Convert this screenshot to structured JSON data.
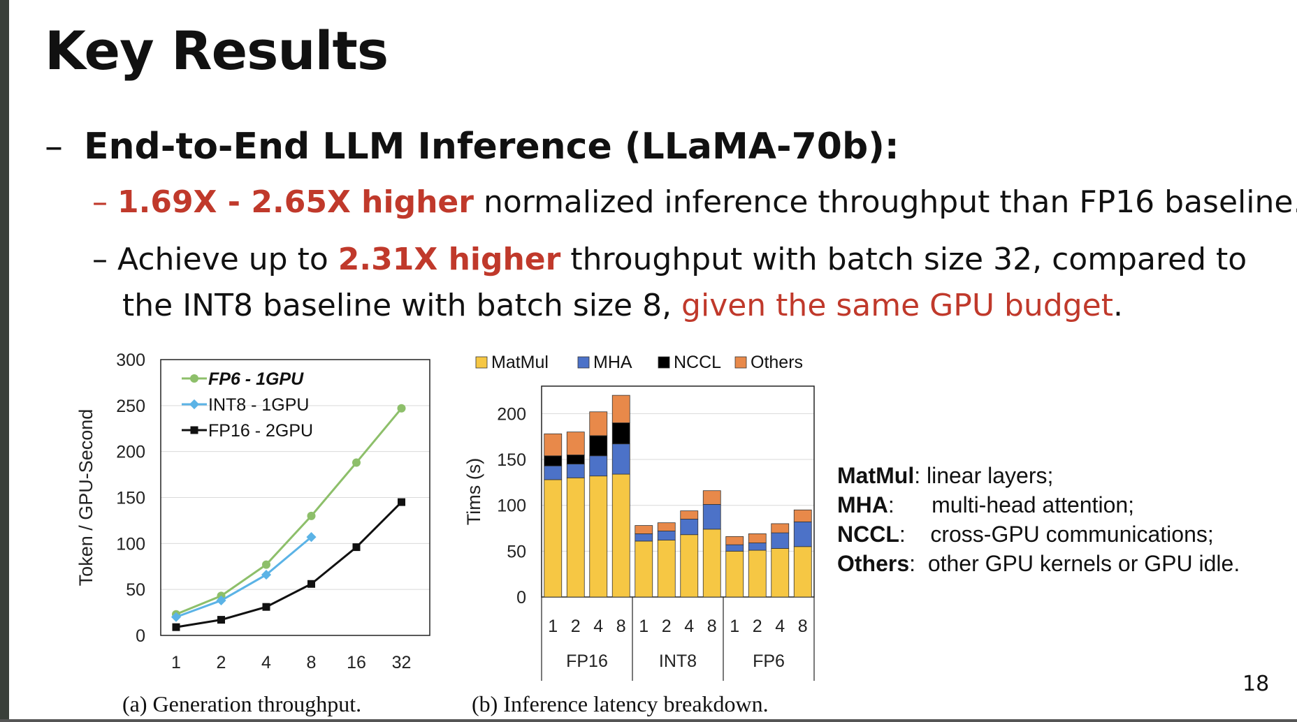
{
  "slide": {
    "title": "Key Results",
    "bullet1": {
      "dash": "–",
      "text": "End-to-End LLM Inference (LLaMA-70b):"
    },
    "bullet2": {
      "dash": "–",
      "highlight": "1.69X - 2.65X higher",
      "rest": " normalized inference throughput than FP16 baseline."
    },
    "bullet3": {
      "dash": "–",
      "part1": "Achieve up to ",
      "highlight": "2.31X higher",
      "part2": " throughput with batch size 32, compared to",
      "line2_part1": "the INT8 baseline with batch size 8, ",
      "line2_highlight": "given the same GPU budget",
      "line2_end": "."
    },
    "caption_a": "(a) Generation throughput.",
    "caption_b": "(b) Inference latency breakdown.",
    "definitions": [
      {
        "term": "MatMul",
        "sep": ": ",
        "text": "linear layers;"
      },
      {
        "term": "MHA",
        "sep": ":      ",
        "text": "multi-head attention;"
      },
      {
        "term": "NCCL",
        "sep": ":    ",
        "text": "cross-GPU communications;"
      },
      {
        "term": "Others",
        "sep": ":  ",
        "text": "other GPU kernels or GPU idle."
      }
    ],
    "page_number": "18",
    "colors": {
      "highlight_red": "#c0392b"
    }
  },
  "chart_data": [
    {
      "type": "line",
      "ylabel": "Token / GPU-Second",
      "ylim": [
        0,
        300
      ],
      "yticks": [
        0,
        50,
        100,
        150,
        200,
        250,
        300
      ],
      "x": [
        "1",
        "2",
        "4",
        "8",
        "16",
        "32"
      ],
      "legend_position": "top-left",
      "grid": true,
      "series": [
        {
          "name": "FP6  - 1GPU",
          "color": "#8dbf6a",
          "marker": "circle",
          "values": [
            23,
            43,
            77,
            130,
            188,
            247
          ]
        },
        {
          "name": "INT8 - 1GPU",
          "color": "#5bb3e6",
          "marker": "diamond",
          "values": [
            20,
            38,
            66,
            107,
            null,
            null
          ]
        },
        {
          "name": "FP16 - 2GPU",
          "color": "#111111",
          "marker": "square",
          "values": [
            9,
            17,
            31,
            56,
            96,
            145
          ]
        }
      ]
    },
    {
      "type": "bar",
      "stacked": true,
      "ylabel": "Tims (s)",
      "ylim": [
        0,
        230
      ],
      "yticks": [
        0,
        50,
        100,
        150,
        200
      ],
      "legend_position": "top",
      "grid": true,
      "groups": [
        {
          "name": "FP16",
          "categories": [
            "1",
            "2",
            "4",
            "8"
          ]
        },
        {
          "name": "INT8",
          "categories": [
            "1",
            "2",
            "4",
            "8"
          ]
        },
        {
          "name": "FP6",
          "categories": [
            "1",
            "2",
            "4",
            "8"
          ]
        }
      ],
      "series": [
        {
          "name": "MatMul",
          "color": "#f6c744",
          "values": [
            128,
            130,
            132,
            134,
            61,
            62,
            68,
            74,
            50,
            51,
            53,
            55
          ]
        },
        {
          "name": "MHA",
          "color": "#4c72c8",
          "values": [
            15,
            15,
            22,
            33,
            8,
            10,
            17,
            27,
            7,
            8,
            17,
            27
          ]
        },
        {
          "name": "NCCL",
          "color": "#000000",
          "values": [
            11,
            10,
            22,
            23,
            0,
            0,
            0,
            0,
            0,
            0,
            0,
            0
          ]
        },
        {
          "name": "Others",
          "color": "#e8894a",
          "values": [
            24,
            25,
            26,
            30,
            9,
            9,
            9,
            15,
            9,
            10,
            10,
            13
          ]
        }
      ]
    }
  ]
}
